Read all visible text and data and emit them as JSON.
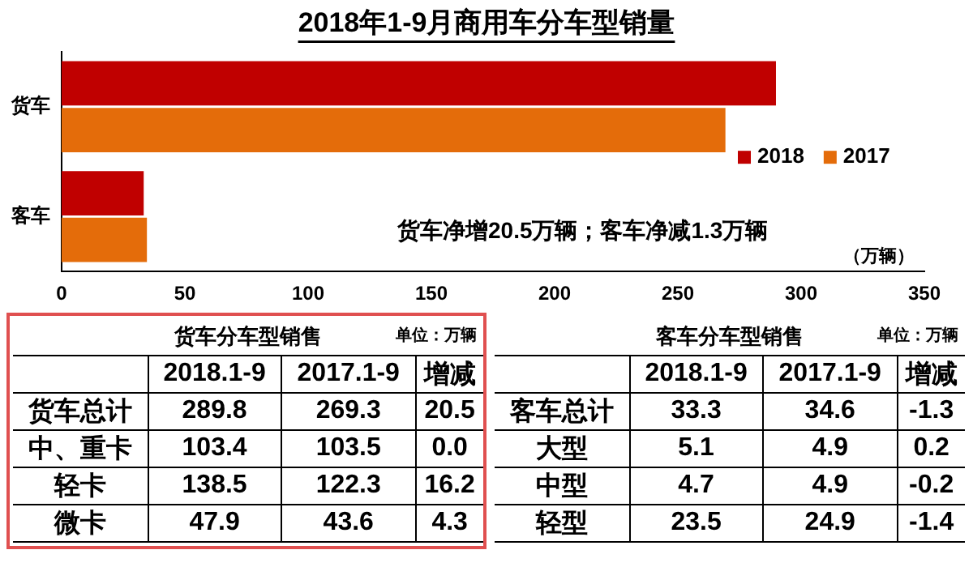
{
  "chart_data": [
    {
      "type": "bar",
      "orientation": "horizontal",
      "title": "2018年1-9月商用车分车型销量",
      "categories": [
        "货车",
        "客车"
      ],
      "series": [
        {
          "name": "2018",
          "color": "#c00000",
          "values": [
            289.8,
            33.3
          ]
        },
        {
          "name": "2017",
          "color": "#e46c0a",
          "values": [
            269.3,
            34.6
          ]
        }
      ],
      "xlim": [
        0,
        350
      ],
      "xticks": [
        0,
        50,
        100,
        150,
        200,
        250,
        300,
        350
      ],
      "grid": false,
      "legend": "right",
      "annotations": [
        "货车净增20.5万辆；客车净减1.3万辆",
        "（万辆）"
      ]
    },
    {
      "type": "heatmap",
      "title": "货车分车型销售",
      "annotations": [
        "单位：万辆"
      ],
      "categories": [
        "2018.1-9",
        "2017.1-9",
        "增减"
      ],
      "y_categories": [
        "货车总计",
        "中、重卡",
        "轻卡",
        "微卡"
      ],
      "cells": [
        [
          289.8,
          269.3,
          20.5
        ],
        [
          103.4,
          103.5,
          0
        ],
        [
          138.5,
          122.3,
          16.2
        ],
        [
          47.9,
          43.6,
          4.3
        ]
      ],
      "cell_labels": [
        [
          "289.8",
          "269.3",
          "20.5"
        ],
        [
          "103.4",
          "103.5",
          "0.0"
        ],
        [
          "138.5",
          "122.3",
          "16.2"
        ],
        [
          "47.9",
          "43.6",
          "4.3"
        ]
      ]
    },
    {
      "type": "heatmap",
      "title": "客车分车型销售",
      "annotations": [
        "单位：万辆"
      ],
      "categories": [
        "2018.1-9",
        "2017.1-9",
        "增减"
      ],
      "y_categories": [
        "客车总计",
        "大型",
        "中型",
        "轻型"
      ],
      "cells": [
        [
          33.3,
          34.6,
          -1.3
        ],
        [
          5.1,
          4.9,
          0.2
        ],
        [
          4.7,
          4.9,
          -0.2
        ],
        [
          23.5,
          24.9,
          -1.4
        ]
      ],
      "data_labels": true
    }
  ]
}
